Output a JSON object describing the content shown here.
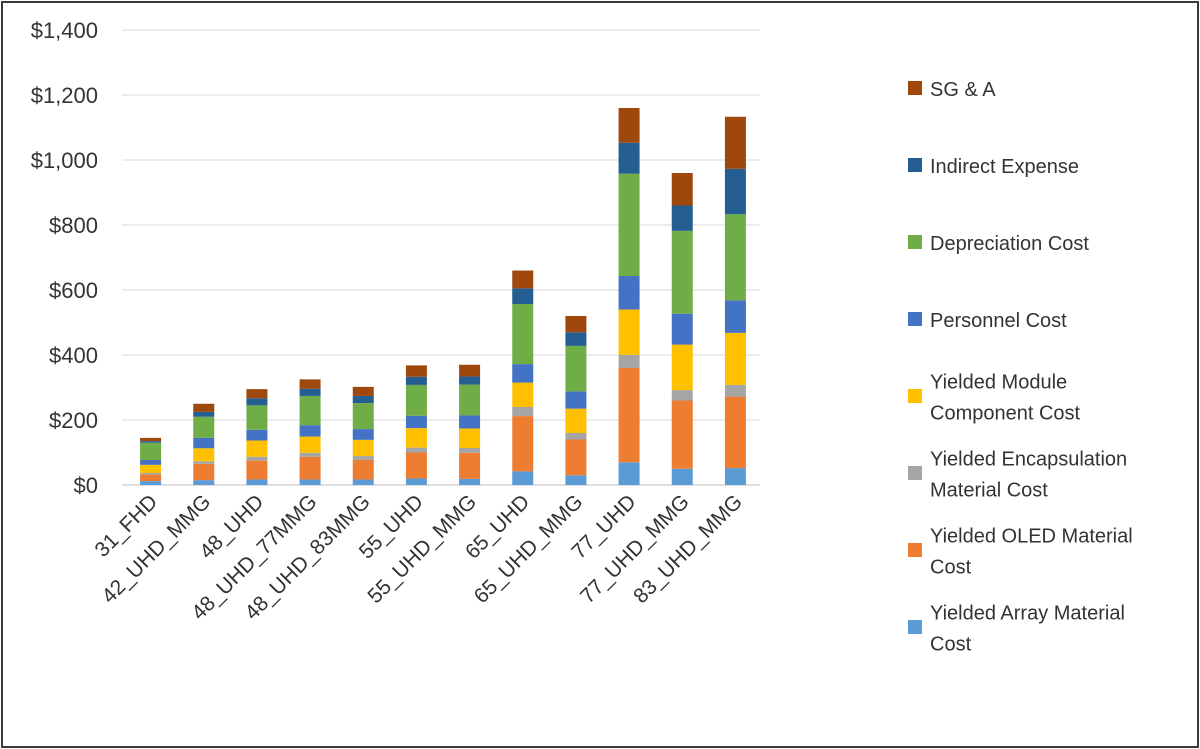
{
  "chart_data": {
    "type": "bar",
    "stacked": true,
    "title": "",
    "xlabel": "",
    "ylabel": "",
    "ylim": [
      0,
      1400
    ],
    "yticks": [
      0,
      200,
      400,
      600,
      800,
      1000,
      1200,
      1400
    ],
    "ytick_labels": [
      "$0",
      "$200",
      "$400",
      "$600",
      "$800",
      "$1,000",
      "$1,200",
      "$1,400"
    ],
    "grid": true,
    "legend_position": "right",
    "categories": [
      "31_FHD",
      "42_UHD_MMG",
      "48_UHD",
      "48_UHD_77MMG",
      "48_UHD_83MMG",
      "55_UHD",
      "55_UHD_MMG",
      "65_UHD",
      "65_UHD_MMG",
      "77_UHD",
      "77_UHD_MMG",
      "83_UHD_MMG"
    ],
    "series": [
      {
        "name": "Yielded Array Material Cost",
        "legend_lines": [
          "Yielded Array Material",
          "Cost"
        ],
        "color": "#5b9bd5",
        "values": [
          12,
          15,
          17,
          17,
          17,
          20,
          19,
          42,
          30,
          70,
          50,
          52
        ]
      },
      {
        "name": "Yielded OLED Material Cost",
        "legend_lines": [
          "Yielded OLED Material",
          "Cost"
        ],
        "color": "#ed7d31",
        "values": [
          20,
          50,
          58,
          70,
          60,
          80,
          80,
          170,
          110,
          290,
          210,
          220
        ]
      },
      {
        "name": "Yielded Encapsulation Material Cost",
        "legend_lines": [
          "Yielded Encapsulation",
          "Material Cost"
        ],
        "color": "#a5a5a5",
        "values": [
          5,
          8,
          12,
          12,
          12,
          15,
          15,
          28,
          20,
          40,
          32,
          36
        ]
      },
      {
        "name": "Yielded Module Component Cost",
        "legend_lines": [
          "Yielded Module",
          "Component Cost"
        ],
        "color": "#ffc000",
        "values": [
          25,
          40,
          50,
          50,
          50,
          60,
          60,
          75,
          75,
          140,
          140,
          160
        ]
      },
      {
        "name": "Personnel Cost",
        "legend_lines": [
          "Personnel Cost"
        ],
        "color": "#4472c4",
        "values": [
          15,
          32,
          33,
          35,
          33,
          38,
          40,
          57,
          53,
          103,
          95,
          100
        ]
      },
      {
        "name": "Depreciation Cost",
        "legend_lines": [
          "Depreciation Cost"
        ],
        "color": "#70ad47",
        "values": [
          53,
          65,
          75,
          90,
          80,
          95,
          95,
          185,
          140,
          315,
          255,
          265
        ]
      },
      {
        "name": "Indirect Expense",
        "legend_lines": [
          "Indirect Expense"
        ],
        "color": "#255e91",
        "values": [
          5,
          15,
          22,
          22,
          22,
          25,
          25,
          48,
          42,
          95,
          78,
          140
        ]
      },
      {
        "name": "SG & A",
        "legend_lines": [
          "SG & A"
        ],
        "color": "#9e480e",
        "values": [
          10,
          25,
          28,
          29,
          28,
          35,
          36,
          55,
          50,
          107,
          100,
          160
        ]
      }
    ]
  }
}
